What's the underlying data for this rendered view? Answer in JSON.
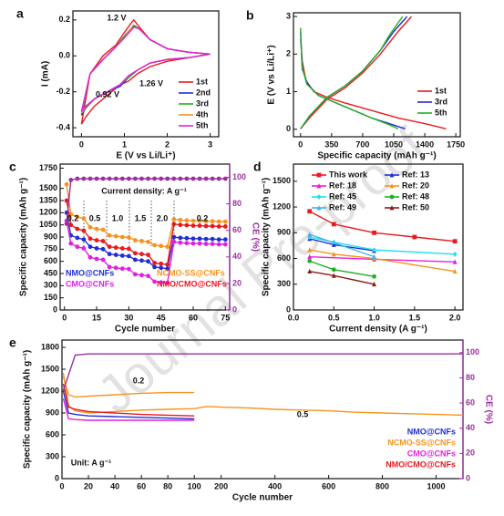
{
  "watermark": "Journal Pre-proof",
  "chart_data": [
    {
      "type": "line",
      "panel_label": "a",
      "xlabel": "E (V vs Li/Li⁺)",
      "ylabel": "I (mA)",
      "xlim": [
        -0.2,
        3.2
      ],
      "ylim": [
        -0.45,
        0.25
      ],
      "xticks": [
        0,
        1,
        2,
        3
      ],
      "yticks": [
        -0.4,
        -0.2,
        {
          "value": 0,
          "label": "0.0"
        },
        0.2
      ],
      "legend": "center right",
      "annotations": [
        "1.2 V",
        "1.26 V",
        "0.92 V"
      ],
      "x": [
        3.0,
        2.5,
        2.0,
        1.6,
        1.3,
        1.1,
        0.9,
        0.6,
        0.3,
        0.1,
        0.0,
        0.2,
        0.5,
        0.8,
        1.0,
        1.15,
        1.22,
        1.35,
        1.6,
        2.0,
        2.5,
        3.0
      ],
      "series": [
        {
          "name": "1st",
          "color": "#e8191f",
          "values": [
            0.01,
            -0.01,
            -0.03,
            -0.06,
            -0.1,
            -0.14,
            -0.16,
            -0.22,
            -0.28,
            -0.34,
            -0.38,
            -0.1,
            0.0,
            0.06,
            0.13,
            0.18,
            0.2,
            0.16,
            0.09,
            0.04,
            0.02,
            0.01
          ]
        },
        {
          "name": "2nd",
          "color": "#1f2fd6",
          "values": [
            0.01,
            -0.01,
            -0.02,
            -0.04,
            -0.08,
            -0.12,
            -0.17,
            -0.2,
            -0.24,
            -0.29,
            -0.33,
            -0.1,
            -0.02,
            0.05,
            0.11,
            0.15,
            0.17,
            0.15,
            0.09,
            0.04,
            0.02,
            0.01
          ]
        },
        {
          "name": "3rd",
          "color": "#22b022",
          "values": [
            0.01,
            -0.01,
            -0.02,
            -0.04,
            -0.08,
            -0.12,
            -0.16,
            -0.2,
            -0.24,
            -0.29,
            -0.32,
            -0.1,
            -0.02,
            0.05,
            0.11,
            0.15,
            0.17,
            0.15,
            0.09,
            0.04,
            0.02,
            0.01
          ]
        },
        {
          "name": "4th",
          "color": "#f7931e",
          "values": [
            0.01,
            -0.01,
            -0.02,
            -0.04,
            -0.08,
            -0.11,
            -0.16,
            -0.2,
            -0.24,
            -0.28,
            -0.32,
            -0.1,
            -0.02,
            0.05,
            0.1,
            0.15,
            0.16,
            0.15,
            0.09,
            0.04,
            0.02,
            0.01
          ]
        },
        {
          "name": "5th",
          "color": "#e21fe0",
          "values": [
            0.01,
            -0.01,
            -0.02,
            -0.04,
            -0.08,
            -0.11,
            -0.16,
            -0.2,
            -0.24,
            -0.28,
            -0.31,
            -0.1,
            -0.02,
            0.05,
            0.1,
            0.14,
            0.16,
            0.15,
            0.09,
            0.04,
            0.02,
            0.01
          ]
        }
      ]
    },
    {
      "type": "line",
      "panel_label": "b",
      "xlabel": "Specific capacity (mAh g⁻¹)",
      "ylabel": "E (V vs Li/Li⁺)",
      "xlim": [
        -80,
        1800
      ],
      "ylim": [
        -0.2,
        3.1
      ],
      "xticks": [
        0,
        350,
        700,
        1050,
        1400,
        1750
      ],
      "yticks": [
        0,
        1,
        2,
        3
      ],
      "legend": "center right",
      "series": [
        {
          "name": "1st",
          "color": "#e8191f",
          "x": [
            0,
            20,
            60,
            150,
            300,
            500,
            800,
            1100,
            1400,
            1640,
            null,
            0,
            100,
            300,
            500,
            700,
            900,
            1100,
            1250
          ],
          "values": [
            2.4,
            1.8,
            1.3,
            1.0,
            0.85,
            0.7,
            0.5,
            0.3,
            0.15,
            0.01,
            null,
            0.01,
            0.3,
            0.8,
            1.1,
            1.5,
            2.0,
            2.6,
            3.0
          ]
        },
        {
          "name": "3rd",
          "color": "#1f2fd6",
          "x": [
            0,
            20,
            80,
            200,
            400,
            600,
            800,
            1000,
            1180,
            null,
            0,
            100,
            300,
            500,
            700,
            900,
            1050,
            1200
          ],
          "values": [
            2.6,
            1.6,
            1.2,
            0.9,
            0.7,
            0.5,
            0.3,
            0.15,
            0.01,
            null,
            0.01,
            0.35,
            0.85,
            1.15,
            1.55,
            2.1,
            2.6,
            3.0
          ]
        },
        {
          "name": "5th",
          "color": "#22b022",
          "x": [
            0,
            15,
            70,
            200,
            400,
            600,
            800,
            1000,
            1100,
            null,
            0,
            100,
            300,
            500,
            700,
            900,
            1000,
            1150
          ],
          "values": [
            2.7,
            1.7,
            1.2,
            0.9,
            0.7,
            0.5,
            0.3,
            0.12,
            0.01,
            null,
            0.01,
            0.35,
            0.85,
            1.15,
            1.55,
            2.1,
            2.5,
            3.0
          ]
        }
      ]
    },
    {
      "type": "line",
      "panel_label": "c",
      "xlabel": "Cycle number",
      "ylabel": "Specific capacity (mAh g⁻¹)",
      "y2label": "CE (%)",
      "xlim": [
        -2,
        77
      ],
      "ylim": [
        0,
        1800
      ],
      "y2lim": [
        0,
        110
      ],
      "y2color": "#9b30a0",
      "xticks": [
        0,
        15,
        30,
        45,
        60,
        75
      ],
      "yticks": [
        0,
        150,
        300,
        450,
        600,
        750,
        900,
        1050,
        1200,
        1350,
        1500,
        1750
      ],
      "y2ticks": [
        0,
        20,
        40,
        60,
        80,
        100
      ],
      "legend": "lower center",
      "annotations": [
        "Current density: A g⁻¹",
        "0.2",
        "0.5",
        "1.0",
        "1.5",
        "2.0",
        "0.2"
      ],
      "x": [
        1,
        3,
        6,
        9,
        12,
        15,
        18,
        21,
        24,
        27,
        30,
        33,
        36,
        39,
        42,
        45,
        48,
        51,
        54,
        57,
        60,
        63,
        66,
        69,
        72,
        75
      ],
      "series": [
        {
          "name": "NMO@CNFs",
          "color": "#1f2fd6",
          "marker": "circle",
          "values": [
            1200,
            920,
            890,
            870,
            780,
            760,
            750,
            690,
            680,
            670,
            665,
            620,
            610,
            600,
            530,
            520,
            510,
            900,
            890,
            885,
            880,
            880,
            875,
            875,
            870,
            870
          ]
        },
        {
          "name": "NCMO-SS@CNFs",
          "color": "#f7931e",
          "marker": "circle",
          "values": [
            1550,
            1180,
            1150,
            1130,
            1020,
            1000,
            990,
            920,
            910,
            900,
            895,
            860,
            850,
            840,
            800,
            790,
            780,
            1120,
            1110,
            1105,
            1100,
            1100,
            1095,
            1095,
            1090,
            1090
          ]
        },
        {
          "name": "CMO@CNFs",
          "color": "#e21fe0",
          "marker": "circle",
          "values": [
            1100,
            820,
            780,
            760,
            650,
            630,
            620,
            530,
            520,
            510,
            505,
            440,
            430,
            420,
            350,
            340,
            335,
            840,
            830,
            825,
            820,
            820,
            815,
            815,
            810,
            810
          ]
        },
        {
          "name": "NMO/CMO@CNFs",
          "color": "#e8191f",
          "marker": "circle",
          "values": [
            1350,
            1050,
            1000,
            980,
            880,
            860,
            850,
            780,
            770,
            760,
            755,
            700,
            690,
            680,
            580,
            570,
            560,
            1060,
            1050,
            1045,
            1040,
            1040,
            1035,
            1035,
            1030,
            1030
          ]
        },
        {
          "color": "#9b30a0",
          "axis": "y2",
          "marker": "circle",
          "values": [
            65,
            98,
            99,
            99,
            99,
            99,
            99,
            99,
            99,
            99,
            99,
            99,
            99,
            99,
            99,
            99,
            99,
            99,
            99,
            99,
            99,
            99,
            99,
            99,
            99,
            99
          ]
        }
      ]
    },
    {
      "type": "line",
      "panel_label": "d",
      "xlabel": "Current density (A g⁻¹)",
      "ylabel": "Specific capacity (mAh g⁻¹)",
      "xlim": [
        0,
        2.1
      ],
      "ylim": [
        0,
        1700
      ],
      "xticks": [
        {
          "value": 0,
          "label": "0.0"
        },
        0.5,
        {
          "value": 1,
          "label": "1.0"
        },
        1.5,
        {
          "value": 2,
          "label": "2.0"
        }
      ],
      "yticks": [
        0,
        300,
        600,
        900,
        1200,
        1500
      ],
      "legend": "upper right",
      "series": [
        {
          "name": "This work",
          "color": "#e8191f",
          "marker": "square",
          "x": [
            0.2,
            0.5,
            1.0,
            1.5,
            2.0
          ],
          "values": [
            1150,
            1000,
            900,
            850,
            800
          ]
        },
        {
          "name": "Ref: 13",
          "color": "#1f2fd6",
          "marker": "triangle",
          "x": [
            0.2,
            0.5,
            1.0
          ],
          "values": [
            830,
            760,
            690
          ]
        },
        {
          "name": "Ref: 18",
          "color": "#e21fe0",
          "marker": "triangle",
          "x": [
            0.2,
            1.0,
            2.0
          ],
          "values": [
            620,
            590,
            560
          ]
        },
        {
          "name": "Ref: 20",
          "color": "#f7931e",
          "marker": "triangle",
          "x": [
            0.2,
            0.5,
            1.0,
            2.0
          ],
          "values": [
            700,
            650,
            600,
            450
          ]
        },
        {
          "name": "Ref: 45",
          "color": "#1ee0f0",
          "marker": "diamond",
          "x": [
            0.2,
            0.5,
            1.0,
            2.0
          ],
          "values": [
            850,
            790,
            700,
            650
          ]
        },
        {
          "name": "Ref: 48",
          "color": "#22b022",
          "marker": "circle",
          "x": [
            0.2,
            0.5,
            1.0
          ],
          "values": [
            570,
            470,
            390
          ]
        },
        {
          "name": "Ref: 49",
          "color": "#39b5f0",
          "marker": "triangle",
          "x": [
            0.2,
            1.0
          ],
          "values": [
            880,
            620
          ]
        },
        {
          "name": "Ref: 50",
          "color": "#8b1a1a",
          "marker": "triangle",
          "x": [
            0.2,
            0.5,
            1.0
          ],
          "values": [
            450,
            400,
            300
          ]
        }
      ]
    },
    {
      "type": "line",
      "panel_label": "e",
      "xlabel": "Cycle number",
      "ylabel": "Specific capacity (mAh g⁻¹)",
      "y2label": "CE (%)",
      "xscale": "broken",
      "xlim": [
        0,
        1100
      ],
      "ylim": [
        0,
        1900
      ],
      "y2lim": [
        0,
        110
      ],
      "y2color": "#9b30a0",
      "xticks": [
        0,
        20,
        40,
        60,
        80,
        100,
        200,
        400,
        600,
        800,
        1000
      ],
      "yticks": [
        0,
        300,
        600,
        900,
        1200,
        1500,
        1800
      ],
      "y2ticks": [
        0,
        20,
        40,
        60,
        80,
        100
      ],
      "legend": "lower right",
      "annotations": [
        "0.2",
        "0.5",
        "Unit: A g⁻¹"
      ],
      "series": [
        {
          "name": "NMO@CNFs",
          "color": "#1f2fd6",
          "x": [
            1,
            5,
            10,
            20,
            40,
            60,
            80,
            100
          ],
          "values": [
            1200,
            900,
            880,
            860,
            850,
            840,
            830,
            820
          ]
        },
        {
          "name": "NCMO-SS@CNFs",
          "color": "#f7931e",
          "x": [
            1,
            5,
            10,
            20,
            40,
            60,
            80,
            100,
            150,
            200,
            300,
            400,
            500,
            600,
            700,
            800,
            900,
            1000,
            1100
          ],
          "values": [
            1450,
            1000,
            930,
            900,
            920,
            940,
            950,
            960,
            990,
            980,
            970,
            950,
            940,
            930,
            910,
            900,
            890,
            880,
            870
          ]
        },
        {
          "name": "CMO@CNFs",
          "color": "#e21fe0",
          "x": [
            1,
            5,
            10,
            20,
            40,
            60,
            80,
            100
          ],
          "values": [
            1100,
            820,
            810,
            800,
            800,
            800,
            800,
            800
          ]
        },
        {
          "name": "NMO/CMO@CNFs",
          "color": "#e8191f",
          "x": [
            1,
            5,
            10,
            20,
            40,
            60,
            80,
            100
          ],
          "values": [
            1300,
            980,
            950,
            920,
            900,
            880,
            870,
            860
          ]
        },
        {
          "color": "#f7931e",
          "x": [
            1,
            5,
            10,
            20,
            40,
            60,
            80,
            100
          ],
          "values": [
            1400,
            1150,
            1120,
            1130,
            1150,
            1170,
            1180,
            1180
          ]
        },
        {
          "color": "#9b30a0",
          "axis": "y2",
          "x": [
            1,
            10,
            20,
            100,
            200,
            400,
            600,
            800,
            1000,
            1100
          ],
          "values": [
            70,
            98,
            99,
            99,
            99,
            99,
            99,
            99,
            99,
            99
          ]
        }
      ]
    }
  ]
}
